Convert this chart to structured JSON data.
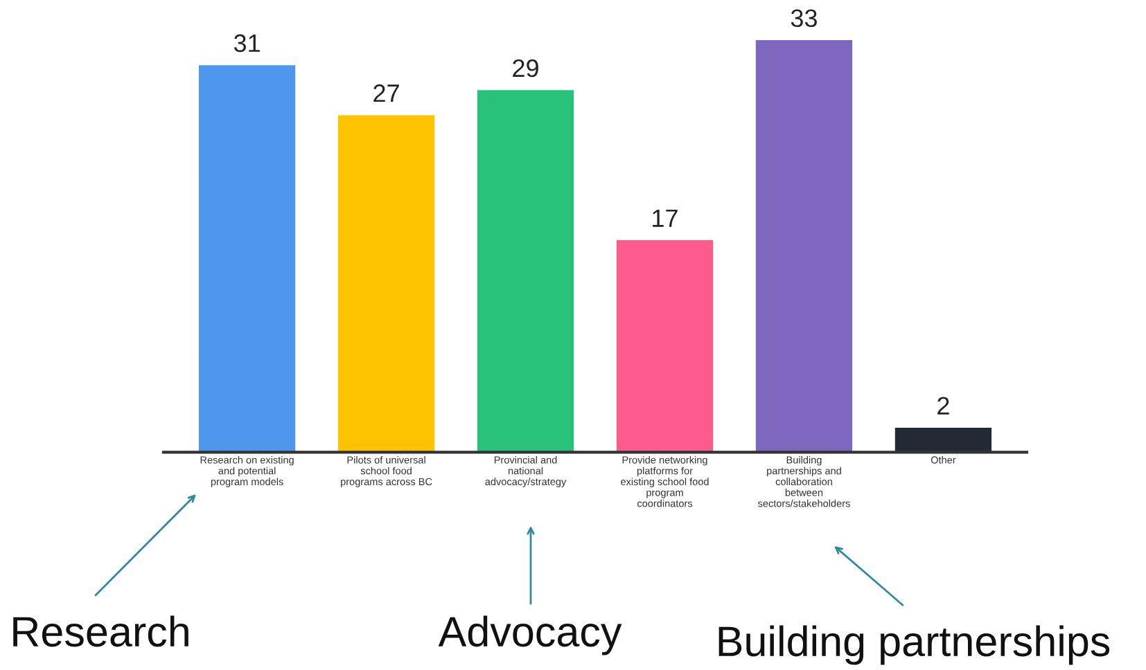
{
  "chart_data": {
    "type": "bar",
    "categories": [
      "Research on existing\nand potential\nprogram models",
      "Pilots of universal\nschool food\nprograms across BC",
      "Provincial and\nnational\nadvocacy/strategy",
      "Provide networking\nplatforms for\nexisting school food\nprogram\ncoordinators",
      "Building\npartnerships and\ncollaboration\nbetween\nsectors/stakeholders",
      "Other"
    ],
    "values": [
      31,
      27,
      29,
      17,
      33,
      2
    ],
    "colors": [
      "#4f97ee",
      "#fdc300",
      "#29c27a",
      "#fd5b8e",
      "#7e68bf",
      "#232a36"
    ],
    "data_labels": true,
    "grid": false,
    "legend": false,
    "annotations": [
      "Research",
      "Advocacy",
      "Building partnerships"
    ]
  }
}
